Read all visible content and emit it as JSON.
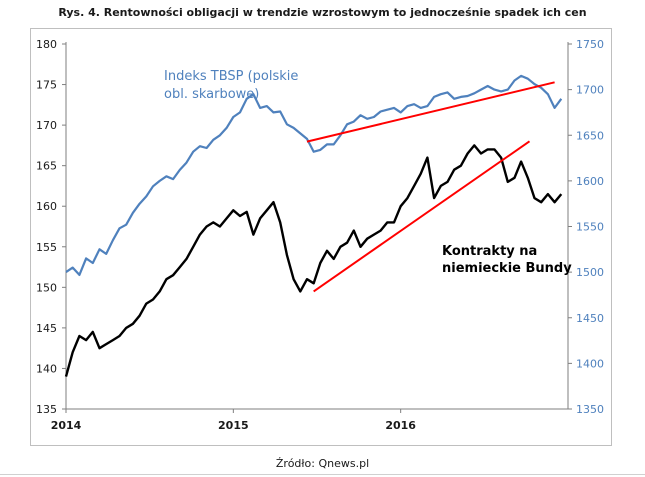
{
  "title": "Rys. 4. Rentowności obligacji w trendzie wzrostowym to jednocześnie spadek ich cen",
  "source": "Źródło: Qnews.pl",
  "chart_data": {
    "type": "line",
    "xlabel": "",
    "x_ticks": [
      "2014",
      "2015",
      "2016"
    ],
    "y_left": {
      "min": 135,
      "max": 180,
      "ticks": [
        135,
        140,
        145,
        150,
        155,
        160,
        165,
        170,
        175,
        180
      ],
      "color": "#1a1a1a"
    },
    "y_right": {
      "min": 1350,
      "max": 1750,
      "ticks": [
        1350,
        1400,
        1450,
        1500,
        1550,
        1600,
        1650,
        1700,
        1750
      ],
      "color": "#4f81bd"
    },
    "grid": false,
    "series": [
      {
        "name": "Indeks TBSP (polskie obl. skarbowe)",
        "axis": "right",
        "color": "#4f81bd",
        "x": [
          2014.0,
          2014.04,
          2014.08,
          2014.12,
          2014.16,
          2014.2,
          2014.24,
          2014.28,
          2014.32,
          2014.36,
          2014.4,
          2014.44,
          2014.48,
          2014.52,
          2014.56,
          2014.6,
          2014.64,
          2014.68,
          2014.72,
          2014.76,
          2014.8,
          2014.84,
          2014.88,
          2014.92,
          2014.96,
          2015.0,
          2015.04,
          2015.08,
          2015.12,
          2015.16,
          2015.2,
          2015.24,
          2015.28,
          2015.32,
          2015.36,
          2015.4,
          2015.44,
          2015.48,
          2015.52,
          2015.56,
          2015.6,
          2015.64,
          2015.68,
          2015.72,
          2015.76,
          2015.8,
          2015.84,
          2015.88,
          2015.92,
          2015.96,
          2016.0,
          2016.04,
          2016.08,
          2016.12,
          2016.16,
          2016.2,
          2016.24,
          2016.28,
          2016.32,
          2016.36,
          2016.4,
          2016.44,
          2016.48,
          2016.52,
          2016.56,
          2016.6,
          2016.64,
          2016.68,
          2016.72,
          2016.76,
          2016.8,
          2016.84,
          2016.88,
          2016.92,
          2016.96
        ],
        "values": [
          1500,
          1505,
          1497,
          1515,
          1510,
          1525,
          1520,
          1535,
          1548,
          1552,
          1565,
          1575,
          1583,
          1594,
          1600,
          1605,
          1602,
          1612,
          1620,
          1632,
          1638,
          1636,
          1645,
          1650,
          1658,
          1670,
          1675,
          1690,
          1695,
          1680,
          1682,
          1675,
          1676,
          1662,
          1658,
          1652,
          1646,
          1632,
          1634,
          1640,
          1640,
          1650,
          1662,
          1665,
          1672,
          1668,
          1670,
          1676,
          1678,
          1680,
          1675,
          1682,
          1684,
          1680,
          1682,
          1692,
          1695,
          1697,
          1690,
          1692,
          1693,
          1696,
          1700,
          1704,
          1700,
          1698,
          1700,
          1710,
          1715,
          1712,
          1706,
          1702,
          1695,
          1680,
          1690
        ],
        "label": "Indeks TBSP (polskie obl. skarbowe)"
      },
      {
        "name": "Kontrakty na niemieckie Bundy",
        "axis": "left",
        "color": "#000000",
        "x": [
          2014.0,
          2014.04,
          2014.08,
          2014.12,
          2014.16,
          2014.2,
          2014.24,
          2014.28,
          2014.32,
          2014.36,
          2014.4,
          2014.44,
          2014.48,
          2014.52,
          2014.56,
          2014.6,
          2014.64,
          2014.68,
          2014.72,
          2014.76,
          2014.8,
          2014.84,
          2014.88,
          2014.92,
          2014.96,
          2015.0,
          2015.04,
          2015.08,
          2015.12,
          2015.16,
          2015.2,
          2015.24,
          2015.28,
          2015.32,
          2015.36,
          2015.4,
          2015.44,
          2015.48,
          2015.52,
          2015.56,
          2015.6,
          2015.64,
          2015.68,
          2015.72,
          2015.76,
          2015.8,
          2015.84,
          2015.88,
          2015.92,
          2015.96,
          2016.0,
          2016.04,
          2016.08,
          2016.12,
          2016.16,
          2016.2,
          2016.24,
          2016.28,
          2016.32,
          2016.36,
          2016.4,
          2016.44,
          2016.48,
          2016.52,
          2016.56,
          2016.6,
          2016.64,
          2016.68,
          2016.72,
          2016.76,
          2016.8,
          2016.84,
          2016.88,
          2016.92,
          2016.96
        ],
        "values": [
          139,
          142,
          144,
          143.5,
          144.5,
          142.5,
          143,
          143.5,
          144,
          145,
          145.5,
          146.5,
          148,
          148.5,
          149.5,
          151,
          151.5,
          152.5,
          153.5,
          155,
          156.5,
          157.5,
          158,
          157.5,
          158.5,
          159.5,
          158.8,
          159.3,
          156.5,
          158.5,
          159.5,
          160.5,
          158,
          154,
          151,
          149.5,
          151,
          150.5,
          153,
          154.5,
          153.5,
          155,
          155.5,
          157,
          155,
          156,
          156.5,
          157,
          158,
          158,
          160,
          161,
          162.5,
          164,
          166,
          161,
          162.5,
          163,
          164.5,
          165,
          166.5,
          167.5,
          166.5,
          167,
          167,
          166,
          163,
          163.5,
          165.5,
          163.5,
          161,
          160.5,
          161.5,
          160.5,
          161.5
        ],
        "label": "Kontrakty na niemieckie Bundy"
      }
    ],
    "annotations": [
      {
        "kind": "trendline",
        "color": "#ff0000",
        "axis": "right",
        "from": [
          2015.44,
          1643
        ],
        "to": [
          2016.92,
          1708
        ]
      },
      {
        "kind": "trendline",
        "color": "#ff0000",
        "axis": "left",
        "from": [
          2015.48,
          149.5
        ],
        "to": [
          2016.77,
          168
        ]
      }
    ],
    "text_labels": {
      "tbsp_line1": "Indeks TBSP (polskie",
      "tbsp_line2": "obl. skarbowe)",
      "bund_line1": "Kontrakty na",
      "bund_line2": "niemieckie Bundy"
    }
  }
}
